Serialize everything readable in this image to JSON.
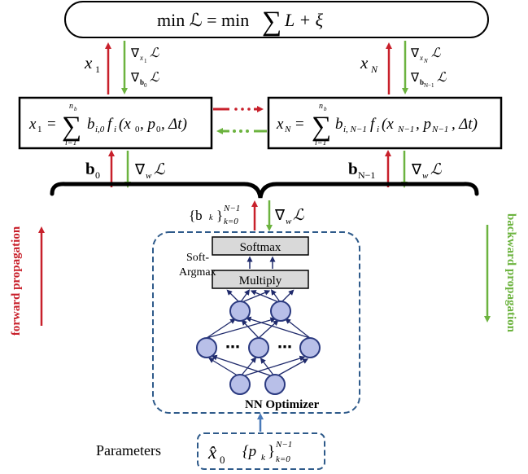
{
  "objective": {
    "lhs": "min ℒ = min",
    "sum": "∑",
    "rhs": "L + ξ"
  },
  "left_block": {
    "x": "x",
    "x_sub": "1",
    "lhs": "x",
    "lhs_sub": "1",
    "eq": "=",
    "sum_top": "n",
    "sum_top_sub": "b",
    "sum_bot": "i=1",
    "body": "b",
    "body_sub": "i,0",
    "f": "f",
    "f_sub": "i",
    "args": "(x",
    "args_1": "0",
    "args_2": ", p",
    "args_3": "0",
    "args_4": ", Δt)",
    "grad_top": "∇",
    "grad_top_sub": "x",
    "grad_top_subsub": "1",
    "grad_top_L": "ℒ",
    "grad_bot": "∇",
    "grad_bot_sub": "b",
    "grad_bot_subsub": "0",
    "grad_bot_L": "ℒ",
    "b_label": "b",
    "b_label_sub": "0",
    "w_grad": "∇",
    "w_grad_sub": "w",
    "w_grad_L": "ℒ"
  },
  "right_block": {
    "x": "x",
    "x_sub": "N",
    "lhs": "x",
    "lhs_sub": "N",
    "eq": "=",
    "sum_top": "n",
    "sum_top_sub": "b",
    "sum_bot": "i=1",
    "body": "b",
    "body_sub": "i, N−1",
    "f": "f",
    "f_sub": "i",
    "args": "(x",
    "args_1": "N−1",
    "args_2": ", p",
    "args_3": "N−1",
    "args_4": ", Δt)",
    "grad_top": "∇",
    "grad_top_sub": "x",
    "grad_top_subsub": "N",
    "grad_top_L": "ℒ",
    "grad_bot": "∇",
    "grad_bot_sub": "b",
    "grad_bot_subsub": "N−1",
    "grad_bot_L": "ℒ",
    "b_label": "b",
    "b_label_sub": "N−1",
    "w_grad": "∇",
    "w_grad_sub": "w",
    "w_grad_L": "ℒ"
  },
  "collect": {
    "set": "{b",
    "set_sub": "k",
    "set_close": "}",
    "set_top": "N−1",
    "set_bot": "k=0",
    "w_grad": "∇",
    "w_grad_sub": "w",
    "w_grad_L": "ℒ"
  },
  "dots": "⋯",
  "nn": {
    "softmax": "Softmax",
    "multiply": "Multiply",
    "soft_argmax_1": "Soft-",
    "soft_argmax_2": "Argmax",
    "ellipsis": "⋯",
    "title": "NN Optimizer"
  },
  "params": {
    "label": "Parameters",
    "xhat": "x̂",
    "xhat_sub": "0",
    "set": "{p",
    "set_sub": "k",
    "set_close": "}",
    "set_top": "N−1",
    "set_bot": "k=0"
  },
  "side": {
    "forward": "forward propagation",
    "backward": "backward propagation"
  },
  "colors": {
    "forward": "#c8202b",
    "backward": "#6cb33f",
    "nn_border": "#2e5a8a",
    "node_fill": "#b8bfe8",
    "node_stroke": "#2b3a80",
    "edge": "#1f2a6b",
    "softmax_fill": "#d9d9d9"
  }
}
